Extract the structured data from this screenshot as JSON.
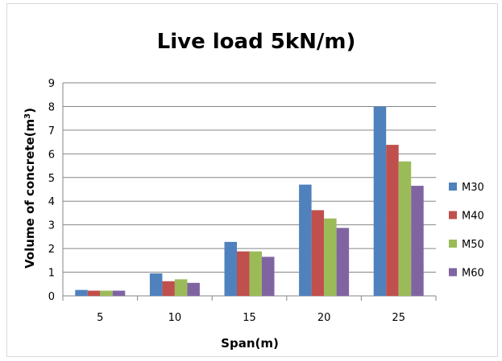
{
  "chart_data": {
    "type": "bar",
    "title": "Live load 5kN/m)",
    "xlabel": "Span(m)",
    "ylabel": "Volume of concrete(m",
    "ylabel_sup": "3",
    "ylabel_end": ")",
    "categories": [
      "5",
      "10",
      "15",
      "20",
      "25"
    ],
    "ylim": [
      0,
      9
    ],
    "yticks": [
      "0",
      "1",
      "2",
      "3",
      "4",
      "5",
      "6",
      "7",
      "8",
      "9"
    ],
    "grid": true,
    "legend_position": "right",
    "series": [
      {
        "name": "M30",
        "color": "#4f81bd",
        "values": [
          0.25,
          0.95,
          2.28,
          4.7,
          8.0
        ]
      },
      {
        "name": "M40",
        "color": "#c0504d",
        "values": [
          0.22,
          0.62,
          1.88,
          3.62,
          6.38
        ]
      },
      {
        "name": "M50",
        "color": "#9bbb59",
        "values": [
          0.22,
          0.7,
          1.88,
          3.27,
          5.68
        ]
      },
      {
        "name": "M60",
        "color": "#8064a2",
        "values": [
          0.22,
          0.55,
          1.65,
          2.87,
          4.65
        ]
      }
    ]
  }
}
